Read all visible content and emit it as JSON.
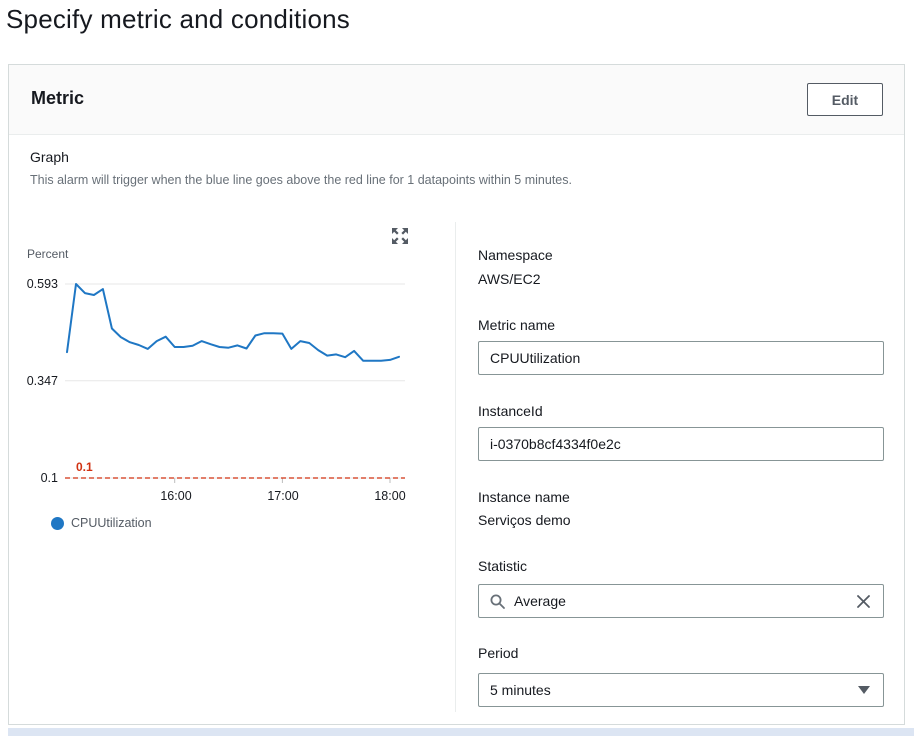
{
  "page": {
    "title": "Specify metric and conditions"
  },
  "card": {
    "title": "Metric",
    "edit_label": "Edit"
  },
  "graph": {
    "label": "Graph",
    "description": "This alarm will trigger when the blue line goes above the red line for 1 datapoints within 5 minutes."
  },
  "chart_data": {
    "type": "line",
    "unit_label": "Percent",
    "line_color": "#1f77c4",
    "grid": true,
    "legend_position": "bottom",
    "x_start": "15:00",
    "x_interval_minutes": 5,
    "y_ticks": [
      {
        "label": "0.593",
        "value": 0.593
      },
      {
        "label": "0.347",
        "value": 0.347
      },
      {
        "label": "0.1",
        "value": 0.1
      }
    ],
    "x_ticks": [
      {
        "label": "16:00",
        "index": 12
      },
      {
        "label": "17:00",
        "index": 24
      },
      {
        "label": "18:00",
        "index": 36
      }
    ],
    "threshold": {
      "value": 0.1,
      "label": "0.1",
      "color": "#d13212",
      "style": "dashed"
    },
    "series": [
      {
        "name": "CPUUtilization",
        "values": [
          0.42,
          0.593,
          0.57,
          0.565,
          0.58,
          0.48,
          0.458,
          0.445,
          0.438,
          0.428,
          0.448,
          0.459,
          0.433,
          0.433,
          0.436,
          0.448,
          0.44,
          0.433,
          0.431,
          0.437,
          0.429,
          0.462,
          0.468,
          0.468,
          0.467,
          0.428,
          0.448,
          0.443,
          0.425,
          0.411,
          0.414,
          0.407,
          0.423,
          0.398,
          0.398,
          0.398,
          0.4,
          0.408
        ]
      }
    ]
  },
  "form": {
    "namespace": {
      "label": "Namespace",
      "value": "AWS/EC2"
    },
    "metric_name": {
      "label": "Metric name",
      "value": "CPUUtilization"
    },
    "instance_id": {
      "label": "InstanceId",
      "value": "i-0370b8cf4334f0e2c"
    },
    "instance_name": {
      "label": "Instance name",
      "value": "Serviços demo"
    },
    "statistic": {
      "label": "Statistic",
      "value": "Average"
    },
    "period": {
      "label": "Period",
      "value": "5 minutes"
    }
  },
  "icons": {
    "expand": "expand-arrows",
    "search": "magnifier",
    "clear": "x-cross",
    "dropdown": "triangle-down"
  },
  "colors": {
    "accent_blue": "#1f77c4",
    "threshold_red": "#d13212",
    "border_gray": "#879596",
    "card_border": "#d5dbdb",
    "header_bg": "#fafafa",
    "secondary_text": "#687078"
  }
}
